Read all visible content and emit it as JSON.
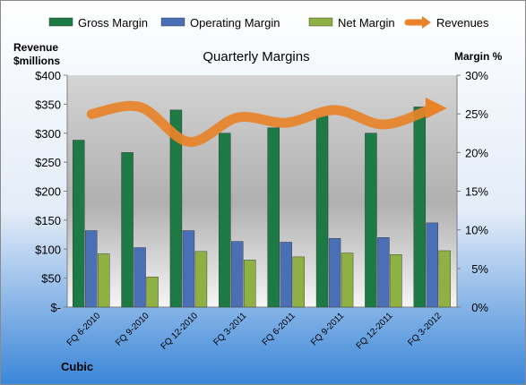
{
  "chart_data": {
    "type": "bar",
    "title": "Quarterly Margins",
    "left_axis_label": [
      "Revenue",
      "$millions"
    ],
    "right_axis_label": "Margin %",
    "footer_label": "Cubic",
    "categories": [
      "FQ 6-2010",
      "FQ 9-2010",
      "FQ 12-2010",
      "FQ 3-2011",
      "FQ 6-2011",
      "FQ 9-2011",
      "FQ 12-2011",
      "FQ 3-2012"
    ],
    "left_ticks": [
      "$-",
      "$50",
      "$100",
      "$150",
      "$200",
      "$250",
      "$300",
      "$350",
      "$400"
    ],
    "right_ticks": [
      "0%",
      "5%",
      "10%",
      "15%",
      "20%",
      "25%",
      "30%"
    ],
    "ylim_left": [
      0,
      400
    ],
    "ylim_right": [
      0,
      30
    ],
    "grid": false,
    "legend_position": "top",
    "series": [
      {
        "name": "Gross Margin",
        "axis": "right",
        "color": "#1e7a45",
        "values": [
          21.6,
          20.0,
          25.5,
          22.5,
          23.2,
          24.7,
          22.5,
          25.9
        ]
      },
      {
        "name": "Operating Margin",
        "axis": "right",
        "color": "#4a6fb5",
        "values": [
          9.9,
          7.7,
          9.9,
          8.5,
          8.4,
          8.9,
          9.0,
          10.9
        ]
      },
      {
        "name": "Net Margin",
        "axis": "right",
        "color": "#8fb043",
        "values": [
          6.9,
          3.9,
          7.2,
          6.1,
          6.5,
          7.0,
          6.8,
          7.3
        ]
      },
      {
        "name": "Revenues",
        "axis": "left",
        "type": "line",
        "color": "#e8832a",
        "values": [
          333,
          345,
          285,
          327,
          318,
          340,
          315,
          343
        ]
      }
    ]
  }
}
